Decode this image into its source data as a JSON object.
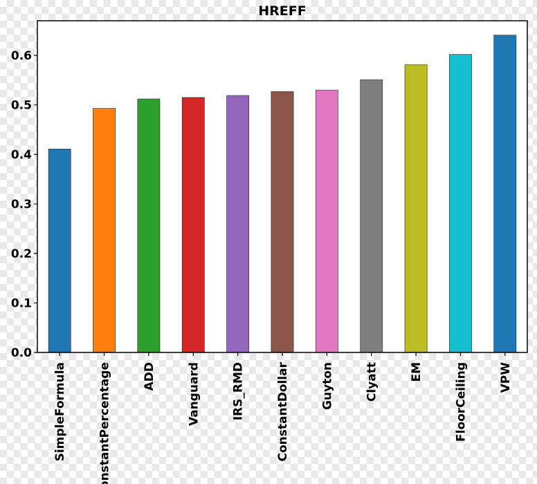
{
  "chart_data": {
    "type": "bar",
    "title": "HREFF",
    "xlabel": "",
    "ylabel": "",
    "ylim": [
      0,
      0.67
    ],
    "yticks": [
      "0.0",
      "0.1",
      "0.2",
      "0.3",
      "0.4",
      "0.5",
      "0.6"
    ],
    "grid": false,
    "legend": "none",
    "categories": [
      "SimpleFormula",
      "ConstantPercentage",
      "ADD",
      "Vanguard",
      "IRS_RMD",
      "ConstantDollar",
      "Guyton",
      "Clyatt",
      "EM",
      "FloorCeiling",
      "VPW"
    ],
    "values": [
      0.411,
      0.493,
      0.512,
      0.515,
      0.519,
      0.527,
      0.53,
      0.551,
      0.581,
      0.602,
      0.641
    ],
    "colors": [
      "#1f77b4",
      "#ff7f0e",
      "#2ca02c",
      "#d62728",
      "#9467bd",
      "#8c564b",
      "#e377c2",
      "#7f7f7f",
      "#bcbd22",
      "#17becf",
      "#1f77b4"
    ]
  }
}
